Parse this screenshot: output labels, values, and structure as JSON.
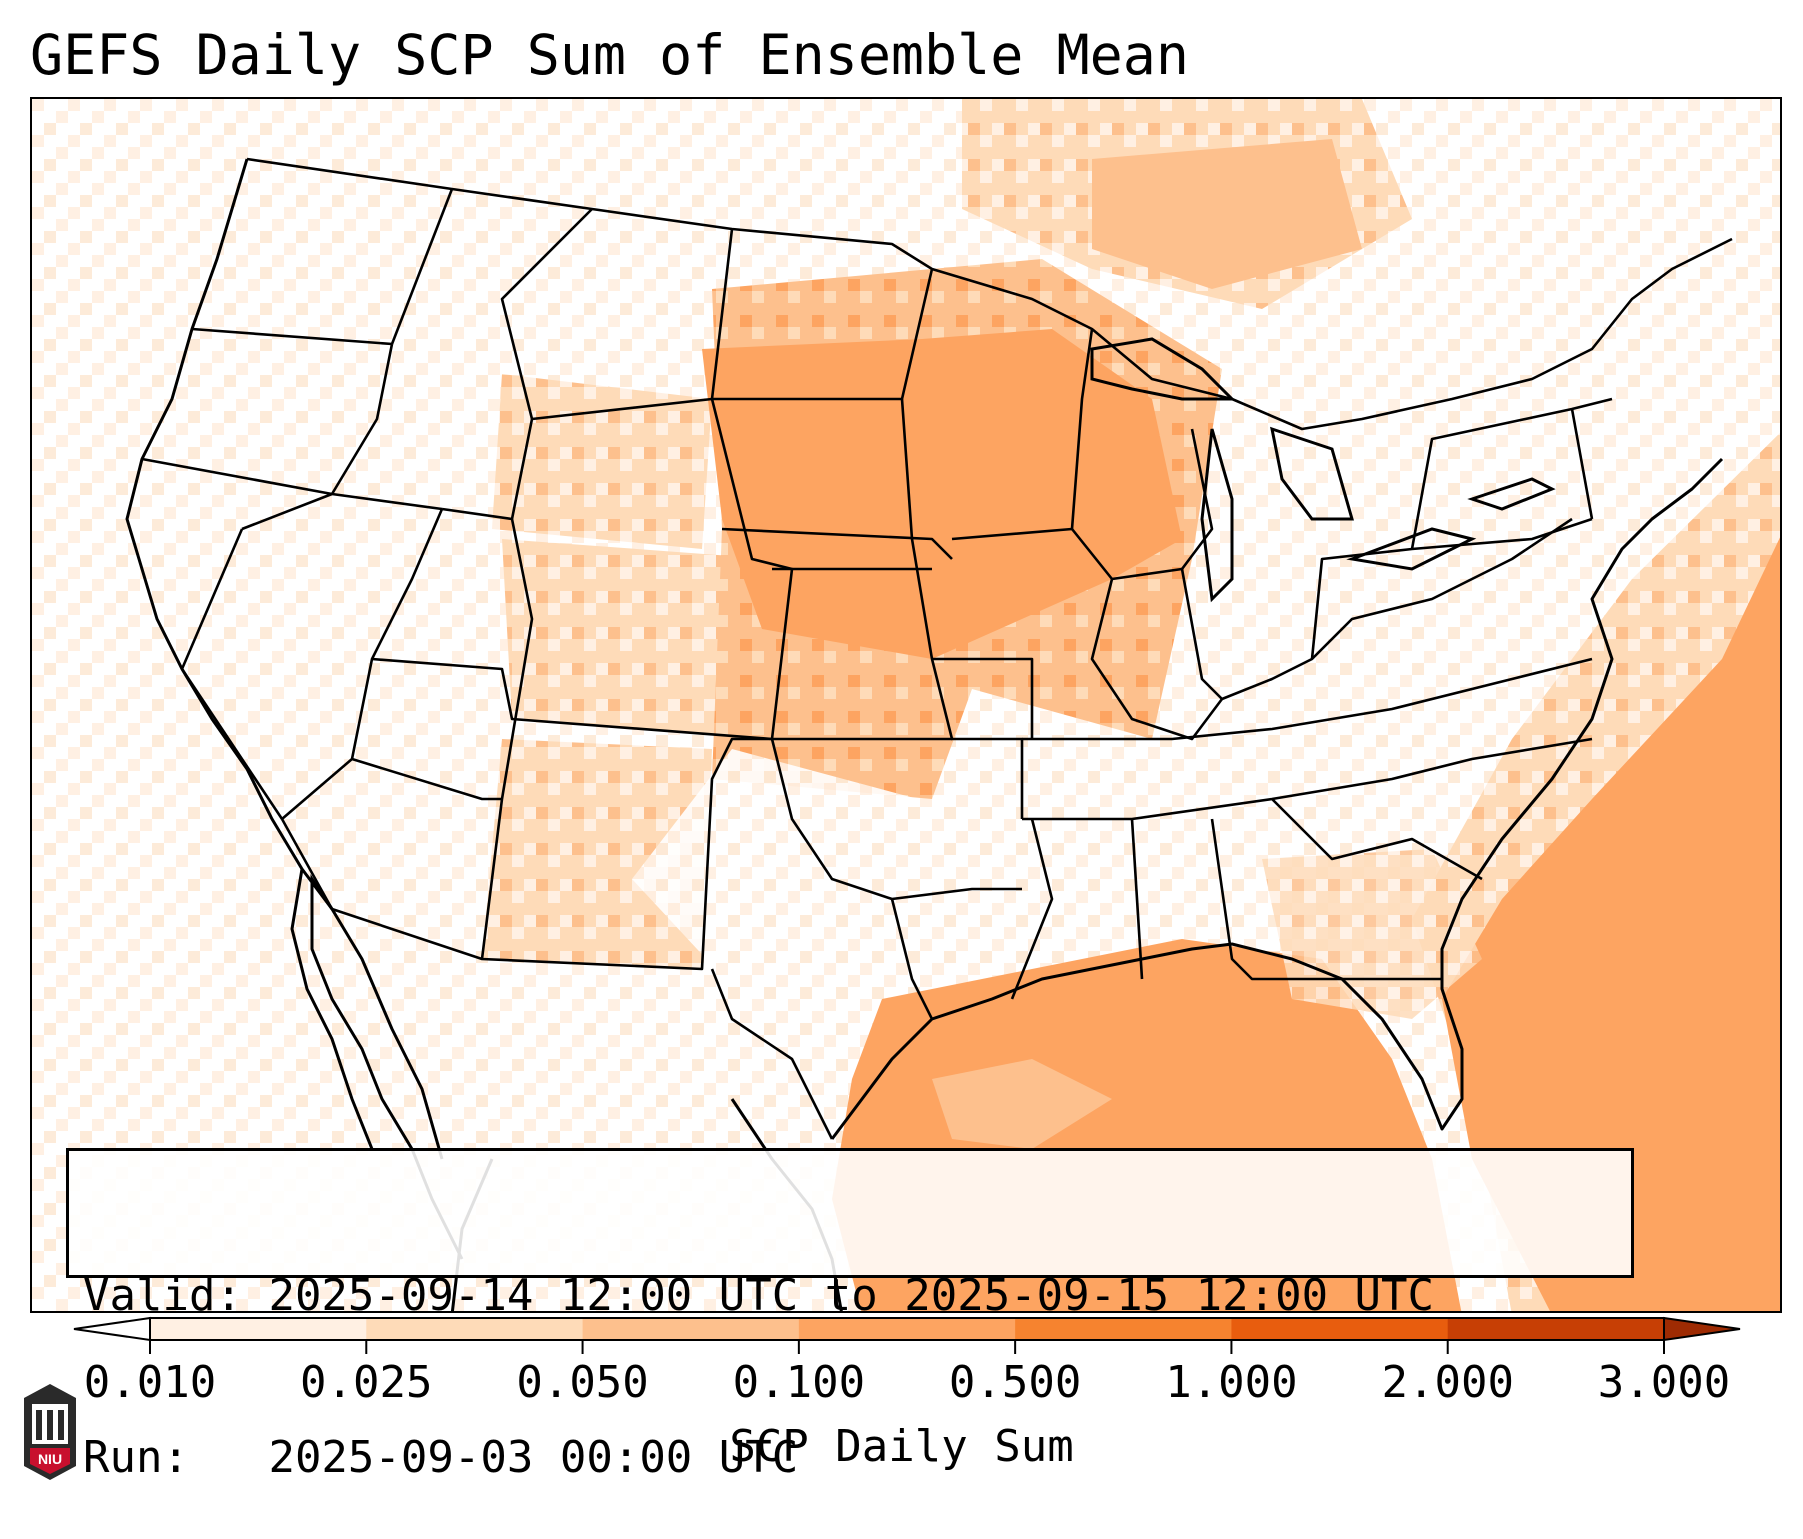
{
  "title": "GEFS Daily SCP Sum of Ensemble Mean",
  "info": {
    "valid_label": "Valid:",
    "valid_value": "2025-09-14 12:00 UTC to 2025-09-15 12:00 UTC",
    "run_label": "Run:",
    "run_value": "2025-09-03 00:00 UTC"
  },
  "colorbar": {
    "label": "SCP Daily Sum",
    "ticks": [
      "0.010",
      "0.025",
      "0.050",
      "0.100",
      "0.500",
      "1.000",
      "2.000",
      "3.000"
    ],
    "colors": [
      "#fff0e3",
      "#fedbb8",
      "#fdc08d",
      "#fda461",
      "#f6832f",
      "#e85d0e",
      "#c73f05",
      "#9e2b03"
    ],
    "extend": "both"
  },
  "logo": {
    "text": "NIU",
    "accent": "#c8102e"
  },
  "map": {
    "region": "Contiguous United States",
    "background": "#fffaf5",
    "colors": {
      "low": "#fff0e3",
      "mid": "#fedbb8",
      "high": "#fdc08d",
      "top": "#fda461"
    }
  }
}
